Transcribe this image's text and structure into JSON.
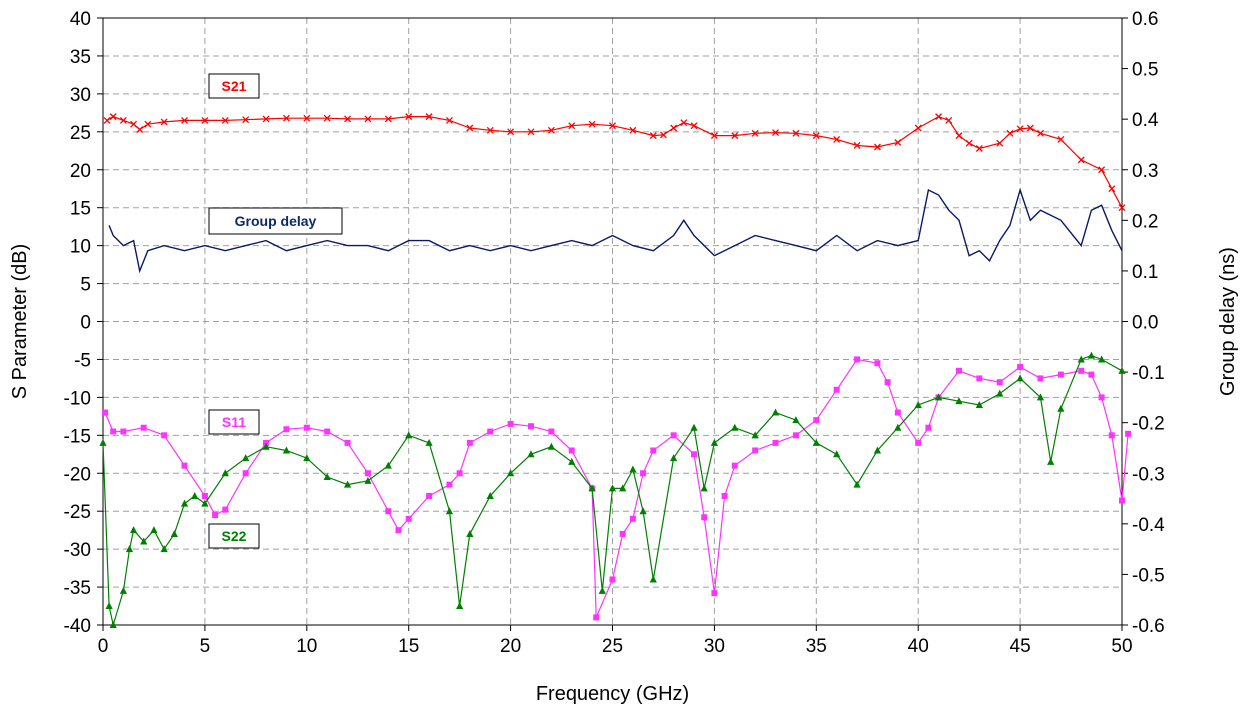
{
  "chart_data": {
    "type": "line",
    "xlabel": "Frequency (GHz)",
    "ylabel": "S Parameter (dB)",
    "y2label": "Group delay (ns)",
    "xlim": [
      0,
      50
    ],
    "ylim": [
      -40,
      40
    ],
    "y2lim": [
      -0.6,
      0.6
    ],
    "xticks": [
      "0",
      "5",
      "10",
      "15",
      "20",
      "25",
      "30",
      "35",
      "40",
      "45",
      "50"
    ],
    "yticks": [
      "-40",
      "-35",
      "-30",
      "-25",
      "-20",
      "-15",
      "-10",
      "-5",
      "0",
      "5",
      "10",
      "15",
      "20",
      "25",
      "30",
      "35",
      "40"
    ],
    "y2ticks": [
      "-0.6",
      "-0.5",
      "-0.4",
      "-0.3",
      "-0.2",
      "-0.1",
      "0.0",
      "0.1",
      "0.2",
      "0.3",
      "0.4",
      "0.5",
      "0.6"
    ],
    "grid": true,
    "series": [
      {
        "name": "S21",
        "axis": "left",
        "color": "#ff0000",
        "marker": "x",
        "points": [
          [
            0.2,
            26.5
          ],
          [
            0.5,
            27
          ],
          [
            1,
            26.5
          ],
          [
            1.5,
            26
          ],
          [
            1.8,
            25.3
          ],
          [
            2.2,
            26
          ],
          [
            3,
            26.3
          ],
          [
            4,
            26.5
          ],
          [
            5,
            26.5
          ],
          [
            6,
            26.5
          ],
          [
            7,
            26.6
          ],
          [
            8,
            26.7
          ],
          [
            9,
            26.8
          ],
          [
            10,
            26.8
          ],
          [
            11,
            26.8
          ],
          [
            12,
            26.7
          ],
          [
            13,
            26.7
          ],
          [
            14,
            26.7
          ],
          [
            15,
            27
          ],
          [
            16,
            27
          ],
          [
            17,
            26.5
          ],
          [
            18,
            25.5
          ],
          [
            19,
            25.2
          ],
          [
            20,
            25
          ],
          [
            21,
            25
          ],
          [
            22,
            25.2
          ],
          [
            23,
            25.8
          ],
          [
            24,
            26
          ],
          [
            25,
            25.8
          ],
          [
            26,
            25.2
          ],
          [
            27,
            24.5
          ],
          [
            27.5,
            24.6
          ],
          [
            28,
            25.5
          ],
          [
            28.5,
            26.2
          ],
          [
            29,
            25.8
          ],
          [
            30,
            24.5
          ],
          [
            31,
            24.5
          ],
          [
            32,
            24.8
          ],
          [
            33,
            24.9
          ],
          [
            34,
            24.8
          ],
          [
            35,
            24.5
          ],
          [
            36,
            24
          ],
          [
            37,
            23.2
          ],
          [
            38,
            23
          ],
          [
            39,
            23.6
          ],
          [
            40,
            25.5
          ],
          [
            41,
            27
          ],
          [
            41.5,
            26.5
          ],
          [
            42,
            24.5
          ],
          [
            42.5,
            23.5
          ],
          [
            43,
            22.8
          ],
          [
            44,
            23.5
          ],
          [
            44.5,
            24.8
          ],
          [
            45,
            25.4
          ],
          [
            45.5,
            25.5
          ],
          [
            46,
            24.8
          ],
          [
            47,
            24
          ],
          [
            48,
            21.3
          ],
          [
            49,
            20
          ],
          [
            49.5,
            17.5
          ],
          [
            50,
            15
          ]
        ]
      },
      {
        "name": "Group delay",
        "axis": "right",
        "color": "#0a1a66",
        "marker": "none",
        "points": [
          [
            0.3,
            0.19
          ],
          [
            0.5,
            0.17
          ],
          [
            1,
            0.15
          ],
          [
            1.5,
            0.16
          ],
          [
            1.8,
            0.1
          ],
          [
            2.2,
            0.14
          ],
          [
            3,
            0.15
          ],
          [
            4,
            0.14
          ],
          [
            5,
            0.15
          ],
          [
            6,
            0.14
          ],
          [
            7,
            0.15
          ],
          [
            8,
            0.16
          ],
          [
            9,
            0.14
          ],
          [
            10,
            0.15
          ],
          [
            11,
            0.16
          ],
          [
            12,
            0.15
          ],
          [
            13,
            0.15
          ],
          [
            14,
            0.14
          ],
          [
            15,
            0.16
          ],
          [
            16,
            0.16
          ],
          [
            17,
            0.14
          ],
          [
            18,
            0.15
          ],
          [
            19,
            0.14
          ],
          [
            20,
            0.15
          ],
          [
            21,
            0.14
          ],
          [
            22,
            0.15
          ],
          [
            23,
            0.16
          ],
          [
            24,
            0.15
          ],
          [
            25,
            0.17
          ],
          [
            26,
            0.15
          ],
          [
            27,
            0.14
          ],
          [
            28,
            0.17
          ],
          [
            28.5,
            0.2
          ],
          [
            29,
            0.17
          ],
          [
            30,
            0.13
          ],
          [
            31,
            0.15
          ],
          [
            32,
            0.17
          ],
          [
            33,
            0.16
          ],
          [
            34,
            0.15
          ],
          [
            35,
            0.14
          ],
          [
            36,
            0.17
          ],
          [
            37,
            0.14
          ],
          [
            38,
            0.16
          ],
          [
            39,
            0.15
          ],
          [
            40,
            0.16
          ],
          [
            40.5,
            0.26
          ],
          [
            41,
            0.25
          ],
          [
            41.5,
            0.22
          ],
          [
            42,
            0.2
          ],
          [
            42.5,
            0.13
          ],
          [
            43,
            0.14
          ],
          [
            43.5,
            0.12
          ],
          [
            44,
            0.16
          ],
          [
            44.5,
            0.19
          ],
          [
            45,
            0.26
          ],
          [
            45.5,
            0.2
          ],
          [
            46,
            0.22
          ],
          [
            47,
            0.2
          ],
          [
            48,
            0.15
          ],
          [
            48.5,
            0.22
          ],
          [
            49,
            0.23
          ],
          [
            49.5,
            0.18
          ],
          [
            50,
            0.14
          ]
        ]
      },
      {
        "name": "S11",
        "axis": "left",
        "color": "#ff33ff",
        "marker": "square",
        "points": [
          [
            0.1,
            -12
          ],
          [
            0.5,
            -14.5
          ],
          [
            1,
            -14.5
          ],
          [
            2,
            -14
          ],
          [
            3,
            -15
          ],
          [
            4,
            -19
          ],
          [
            5,
            -23
          ],
          [
            5.5,
            -25.5
          ],
          [
            6,
            -24.8
          ],
          [
            7,
            -20
          ],
          [
            8,
            -16
          ],
          [
            9,
            -14.2
          ],
          [
            10,
            -14
          ],
          [
            11,
            -14.5
          ],
          [
            12,
            -16
          ],
          [
            13,
            -20
          ],
          [
            14,
            -25
          ],
          [
            14.5,
            -27.5
          ],
          [
            15,
            -26
          ],
          [
            16,
            -23
          ],
          [
            17,
            -21.5
          ],
          [
            17.5,
            -20
          ],
          [
            18,
            -16
          ],
          [
            19,
            -14.5
          ],
          [
            20,
            -13.5
          ],
          [
            21,
            -13.8
          ],
          [
            22,
            -14.5
          ],
          [
            23,
            -17
          ],
          [
            24,
            -22
          ],
          [
            24.2,
            -39
          ],
          [
            25,
            -34
          ],
          [
            25.5,
            -28
          ],
          [
            26,
            -26
          ],
          [
            26.5,
            -20
          ],
          [
            27,
            -17
          ],
          [
            28,
            -15
          ],
          [
            29,
            -17.5
          ],
          [
            29.5,
            -25.8
          ],
          [
            30,
            -35.8
          ],
          [
            30.5,
            -23
          ],
          [
            31,
            -19
          ],
          [
            32,
            -17
          ],
          [
            33,
            -16
          ],
          [
            34,
            -15
          ],
          [
            35,
            -13
          ],
          [
            36,
            -9
          ],
          [
            37,
            -5
          ],
          [
            38,
            -5.5
          ],
          [
            38.5,
            -8
          ],
          [
            39,
            -12
          ],
          [
            40,
            -16
          ],
          [
            40.5,
            -14
          ],
          [
            41,
            -10
          ],
          [
            42,
            -6.5
          ],
          [
            43,
            -7.5
          ],
          [
            44,
            -8
          ],
          [
            45,
            -6
          ],
          [
            46,
            -7.5
          ],
          [
            47,
            -7
          ],
          [
            48,
            -6.5
          ],
          [
            48.5,
            -7
          ],
          [
            49,
            -10
          ],
          [
            49.5,
            -15
          ],
          [
            50,
            -23.6
          ],
          [
            50.3,
            -14.8
          ]
        ]
      },
      {
        "name": "S22",
        "axis": "left",
        "color": "#008000",
        "marker": "triangle",
        "points": [
          [
            0,
            -16
          ],
          [
            0.3,
            -37.5
          ],
          [
            0.5,
            -41
          ],
          [
            1,
            -35.5
          ],
          [
            1.3,
            -30
          ],
          [
            1.5,
            -27.5
          ],
          [
            2,
            -29
          ],
          [
            2.5,
            -27.5
          ],
          [
            3,
            -30
          ],
          [
            3.5,
            -28
          ],
          [
            4,
            -24
          ],
          [
            4.5,
            -23
          ],
          [
            5,
            -24
          ],
          [
            6,
            -20
          ],
          [
            7,
            -18
          ],
          [
            8,
            -16.5
          ],
          [
            9,
            -17
          ],
          [
            10,
            -18
          ],
          [
            11,
            -20.5
          ],
          [
            12,
            -21.5
          ],
          [
            13,
            -21
          ],
          [
            14,
            -19
          ],
          [
            15,
            -15
          ],
          [
            16,
            -16
          ],
          [
            17,
            -25
          ],
          [
            17.5,
            -37.5
          ],
          [
            18,
            -28
          ],
          [
            19,
            -23
          ],
          [
            20,
            -20
          ],
          [
            21,
            -17.5
          ],
          [
            22,
            -16.5
          ],
          [
            23,
            -18.5
          ],
          [
            24,
            -22
          ],
          [
            24.5,
            -35.5
          ],
          [
            25,
            -22
          ],
          [
            25.5,
            -22
          ],
          [
            26,
            -19.5
          ],
          [
            26.5,
            -25
          ],
          [
            27,
            -34
          ],
          [
            28,
            -18
          ],
          [
            29,
            -14
          ],
          [
            29.5,
            -22
          ],
          [
            30,
            -16
          ],
          [
            31,
            -14
          ],
          [
            32,
            -15
          ],
          [
            33,
            -12
          ],
          [
            34,
            -13
          ],
          [
            35,
            -16
          ],
          [
            36,
            -17.5
          ],
          [
            37,
            -21.5
          ],
          [
            38,
            -17
          ],
          [
            39,
            -14
          ],
          [
            40,
            -11
          ],
          [
            41,
            -10
          ],
          [
            42,
            -10.5
          ],
          [
            43,
            -11
          ],
          [
            44,
            -9.5
          ],
          [
            45,
            -7.5
          ],
          [
            46,
            -10
          ],
          [
            46.5,
            -18.5
          ],
          [
            47,
            -11.5
          ],
          [
            48,
            -5
          ],
          [
            48.5,
            -4.5
          ],
          [
            49,
            -5
          ],
          [
            50,
            -6.5
          ]
        ]
      }
    ],
    "legend_boxes": [
      {
        "label": "S21",
        "color": "#ff0000"
      },
      {
        "label": "Group delay",
        "color": "#0a2a6a"
      },
      {
        "label": "S11",
        "color": "#ff33ff"
      },
      {
        "label": "S22",
        "color": "#008000"
      }
    ]
  }
}
